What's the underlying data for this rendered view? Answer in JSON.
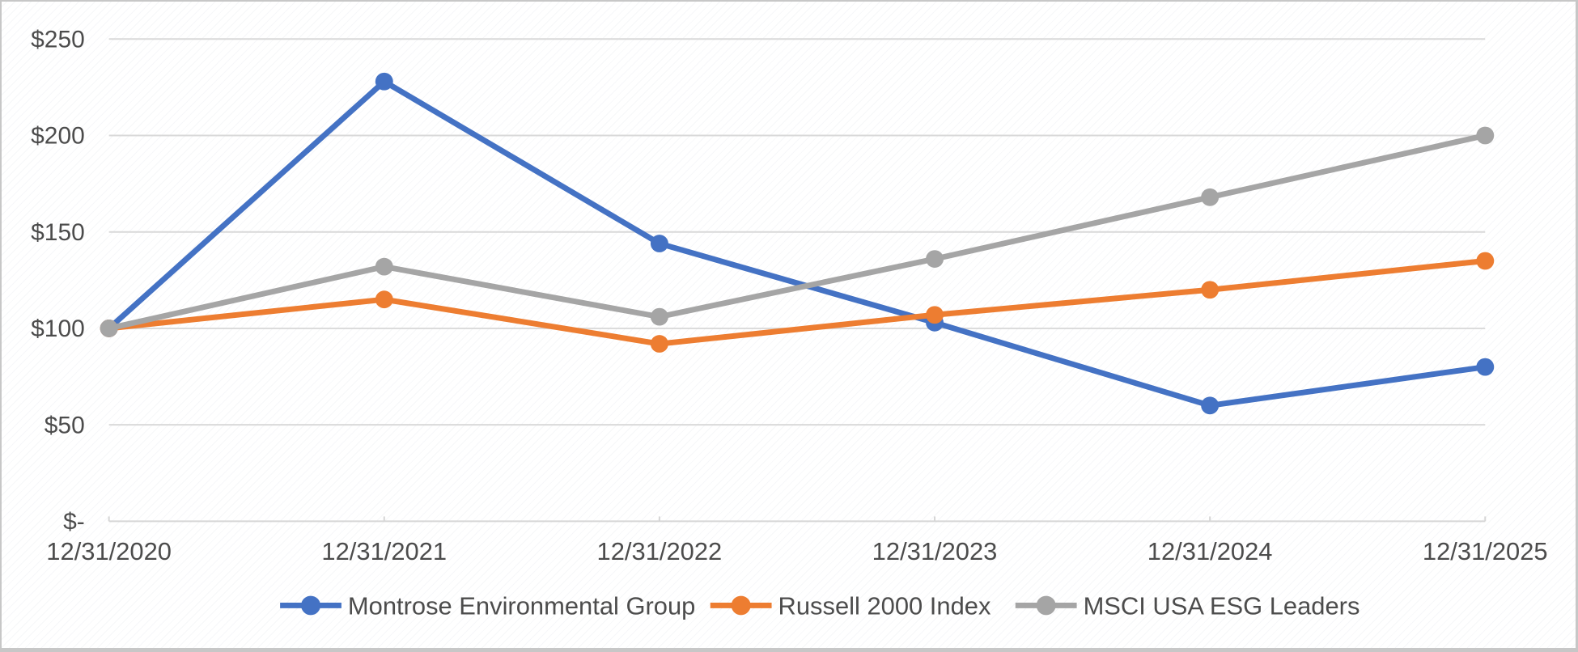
{
  "chart_data": {
    "type": "line",
    "title": "",
    "categories": [
      "12/31/2020",
      "12/31/2021",
      "12/31/2022",
      "12/31/2023",
      "12/31/2024",
      "12/31/2025"
    ],
    "series": [
      {
        "name": "Montrose Environmental Group",
        "color": "#4472C4",
        "values": [
          100,
          228,
          144,
          103,
          60,
          80
        ]
      },
      {
        "name": "Russell 2000 Index",
        "color": "#ED7D31",
        "values": [
          100,
          115,
          92,
          107,
          120,
          135
        ]
      },
      {
        "name": "MSCI USA ESG Leaders",
        "color": "#A5A5A5",
        "values": [
          100,
          132,
          106,
          136,
          168,
          200
        ]
      }
    ],
    "y_axis": {
      "ticks": [
        0,
        50,
        100,
        150,
        200,
        250
      ],
      "tick_labels": [
        "$-",
        "$50",
        "$100",
        "$150",
        "$200",
        "$250"
      ],
      "range": [
        0,
        250
      ],
      "value_format": "dollars"
    },
    "x_axis": {
      "label_format": "date"
    },
    "grid": true,
    "legend_position": "bottom",
    "legend": [
      {
        "label": "Montrose Environmental Group",
        "color": "#4472C4"
      },
      {
        "label": "Russell 2000 Index",
        "color": "#ED7D31"
      },
      {
        "label": "MSCI USA ESG Leaders",
        "color": "#A5A5A5"
      }
    ]
  },
  "colors": {
    "gridline": "#D9D9D9",
    "axis_line": "#D6D6D6",
    "label_text": "#4C4C4C",
    "frame_border": "#C7C7C7",
    "background": "#FFFFFF"
  }
}
